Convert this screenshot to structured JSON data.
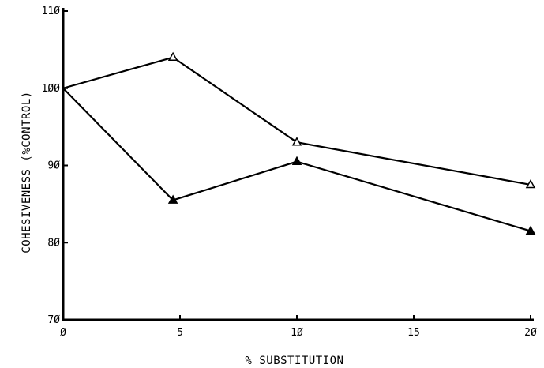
{
  "chart_data": {
    "type": "line",
    "title": "",
    "xlabel": "% SUBSTITUTION",
    "ylabel": "COHESIVENESS (%CONTROL)",
    "xlim": [
      0,
      20
    ],
    "ylim": [
      70,
      110
    ],
    "x_ticks": [
      0,
      5,
      10,
      15,
      20
    ],
    "x_tick_labels": [
      "Ø",
      "5",
      "1Ø",
      "15",
      "2Ø"
    ],
    "y_ticks": [
      70,
      80,
      90,
      100,
      110
    ],
    "y_tick_labels": [
      "7Ø",
      "8Ø",
      "9Ø",
      "1ØØ",
      "11Ø"
    ],
    "grid": false,
    "series": [
      {
        "marker": "open-triangle",
        "x": [
          0,
          4.7,
          10,
          20
        ],
        "y": [
          100,
          104,
          93,
          87.5
        ]
      },
      {
        "marker": "filled-triangle",
        "x": [
          0,
          4.7,
          10,
          20
        ],
        "y": [
          100,
          85.5,
          90.5,
          81.5
        ]
      }
    ]
  }
}
